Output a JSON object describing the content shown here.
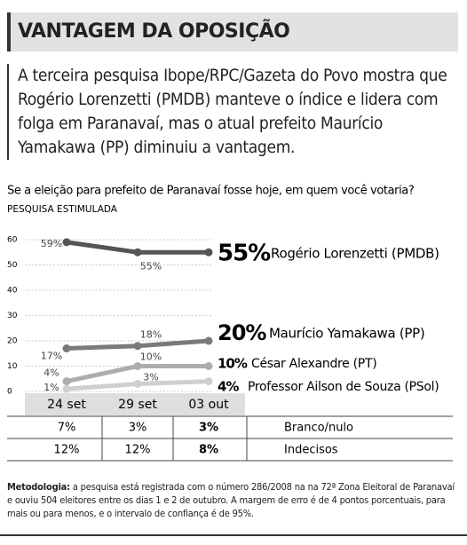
{
  "header": {
    "title": "VANTAGEM DA OPOSIÇÃO"
  },
  "intro": "A terceira pesquisa Ibope/RPC/Gazeta do Povo mostra que Rogério Lorenzetti (PMDB) manteve o índice e lidera com folga em Paranavaí, mas o  atual prefeito Maurício Yamakawa (PP) diminuiu a vantagem.",
  "chart_data": {
    "type": "line",
    "title": "Se a eleição para prefeito de Paranavaí fosse hoje, em quem você votaria?",
    "subtitle": "PESQUISA ESTIMULADA",
    "categories": [
      "24 set",
      "29 set",
      "03 out"
    ],
    "ylim": [
      0,
      60
    ],
    "yticks": [
      0,
      10,
      20,
      30,
      40,
      50,
      60
    ],
    "grid": true,
    "series": [
      {
        "name": "Rogério Lorenzetti (PMDB)",
        "color": "#555555",
        "values": [
          59,
          55,
          55
        ],
        "value_labels": [
          "59%",
          "55%",
          "55%"
        ]
      },
      {
        "name": "Maurício Yamakawa (PP)",
        "color": "#7a7a7a",
        "values": [
          17,
          18,
          20
        ],
        "value_labels": [
          "17%",
          "18%",
          "20%"
        ]
      },
      {
        "name": "César Alexandre (PT)",
        "color": "#adadad",
        "values": [
          4,
          10,
          10
        ],
        "value_labels": [
          "4%",
          "10%",
          "10%"
        ]
      },
      {
        "name": "Professor Ailson de Souza (PSol)",
        "color": "#cfcfcf",
        "values": [
          1,
          3,
          4
        ],
        "value_labels": [
          "1%",
          "3%",
          "4%"
        ]
      }
    ]
  },
  "table": {
    "rows": [
      {
        "label": "Branco/nulo",
        "values": [
          "7%",
          "3%",
          "3%"
        ]
      },
      {
        "label": "Indecisos",
        "values": [
          "12%",
          "12%",
          "8%"
        ]
      }
    ]
  },
  "footer": {
    "label": "Metodologia:",
    "text": " a pesquisa está registrada com o número 286/2008 na na 72ª Zona Eleitoral de Paranavaí e ouviu 504 eleitores entre os dias 1 e 2 de outubro. A margem de erro é de 4 pontos porcentuais, para mais ou para menos, e o intervalo de confiança é de 95%."
  }
}
